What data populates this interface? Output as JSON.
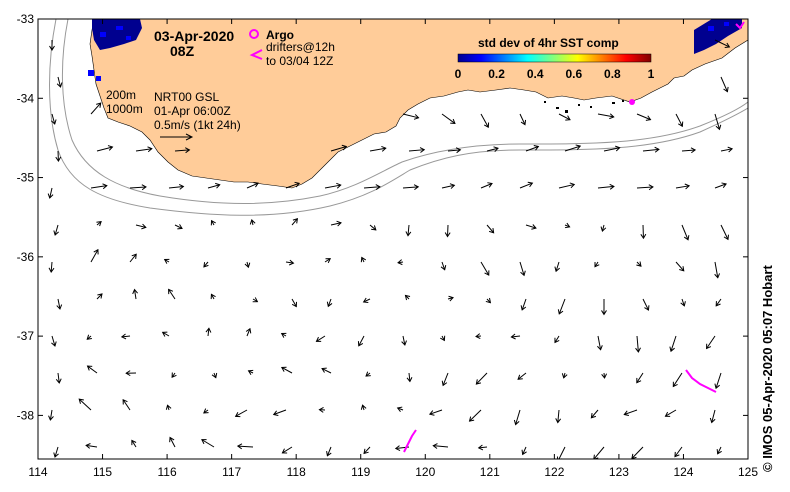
{
  "chart_data": {
    "type": "map",
    "lon_ticks": [
      "114",
      "115",
      "116",
      "117",
      "118",
      "119",
      "120",
      "121",
      "122",
      "123",
      "124",
      "125"
    ],
    "lat_ticks": [
      "-33",
      "-34",
      "-35",
      "-36",
      "-37",
      "-38"
    ],
    "lon_range": [
      114,
      125
    ],
    "lat_range": [
      -38.55,
      -33.0
    ],
    "date_line1": "03-Apr-2020",
    "date_line2": "08Z",
    "legend": {
      "argo_label": "Argo",
      "drifters_line1": "drifters@12h",
      "drifters_line2": "to 03/04 12Z",
      "argo_color": "#ff00ff",
      "drifter_color": "#ff00ff"
    },
    "colorbar": {
      "title": "std dev of 4hr SST comp",
      "ticks": [
        "0",
        "0.2",
        "0.4",
        "0.6",
        "0.8",
        "1"
      ]
    },
    "isobath_labels": [
      "200m",
      "1000m"
    ],
    "product_label": "NRT00 GSL",
    "product_time": "01-Apr 06:00Z",
    "scale_label": "0.5m/s (1kt 24h)",
    "land_color": "#ffcc99",
    "credit": "© IMOS 05-Apr-2020 05:07 Hobart"
  }
}
